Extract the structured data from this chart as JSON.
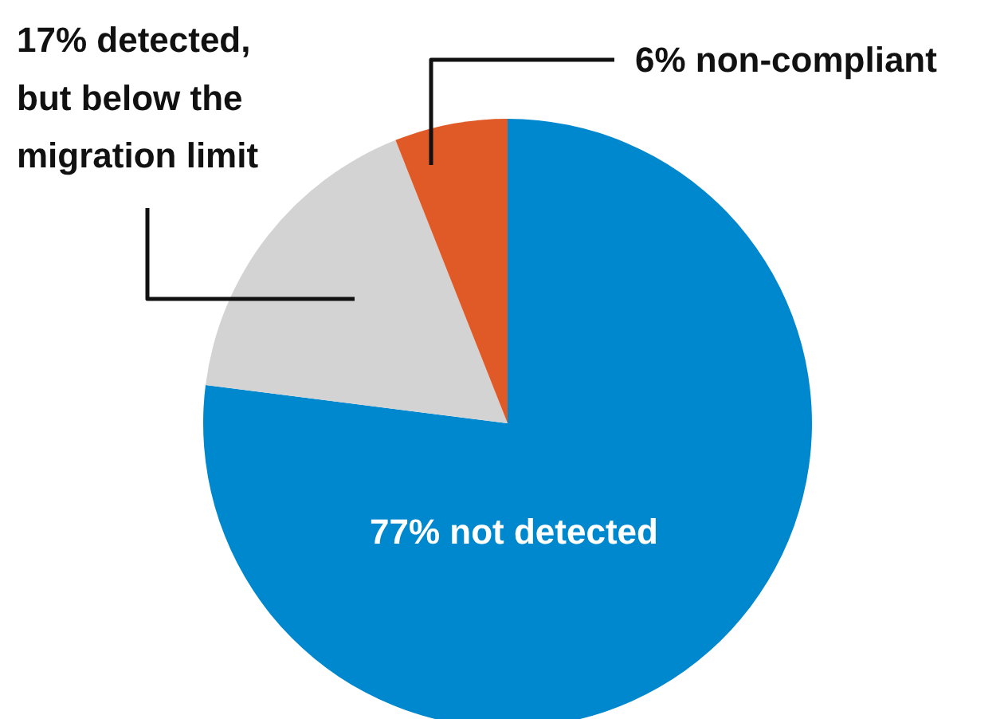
{
  "chart_data": {
    "type": "pie",
    "categories": [
      "77% not detected",
      "17% detected, but below the migration limit",
      "6% non-compliant"
    ],
    "values": [
      77,
      17,
      6
    ],
    "colors": [
      "#0088cf",
      "#d3d3d4",
      "#e05a28"
    ]
  }
}
